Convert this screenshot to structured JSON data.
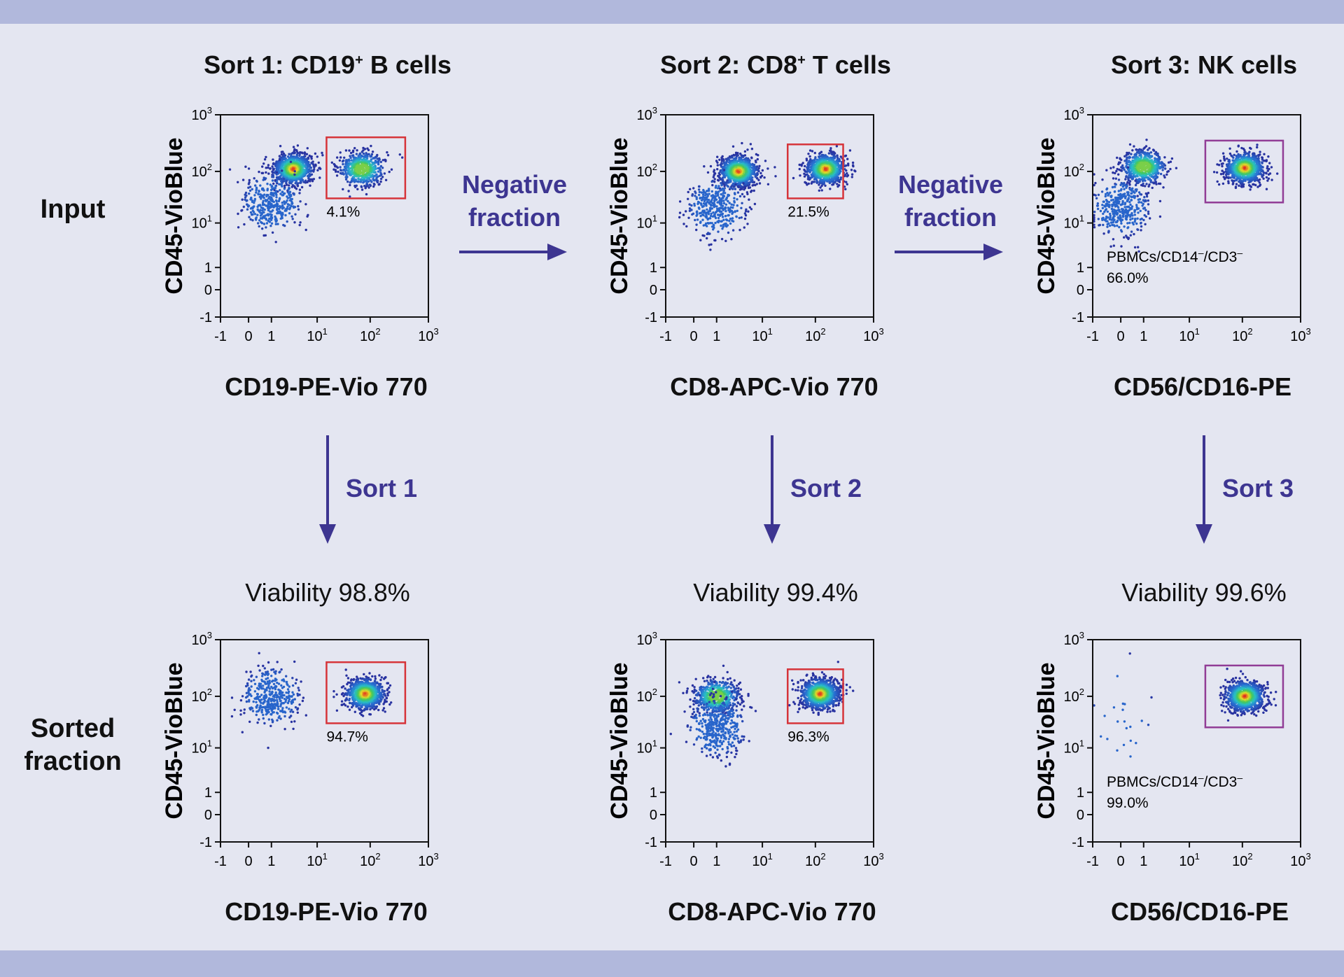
{
  "colors": {
    "band": "#b1b8dc",
    "background": "#e4e6f1",
    "arrow": "#3d3591",
    "gate_red": "#d6343a",
    "gate_purple": "#913d96"
  },
  "row_labels": {
    "input": "Input",
    "sorted_line1": "Sorted",
    "sorted_line2": "fraction"
  },
  "arrows": {
    "negative_line1": "Negative",
    "negative_line2": "fraction",
    "sort1": "Sort 1",
    "sort2": "Sort 2",
    "sort3": "Sort 3"
  },
  "columns": [
    {
      "title_pre": "Sort 1: CD19",
      "title_sup": "+",
      "title_post": " B cells",
      "xlabel": "CD19-PE-Vio 770",
      "viability": "Viability 98.8%"
    },
    {
      "title_pre": "Sort 2: CD8",
      "title_sup": "+",
      "title_post": " T cells",
      "xlabel": "CD8-APC-Vio 770",
      "viability": "Viability 99.4%"
    },
    {
      "title_pre": "Sort 3: NK cells",
      "title_sup": "",
      "title_post": "",
      "xlabel": "CD56/CD16-PE",
      "viability": "Viability 99.6%"
    }
  ],
  "chart_data": [
    {
      "id": "input-sort1",
      "type": "scatter",
      "title": "Sort 1: CD19+ B cells (Input)",
      "xlabel": "CD19-PE-Vio 770",
      "ylabel": "CD45-VioBlue",
      "scale": "biexponential",
      "xlim": [
        -1,
        1000
      ],
      "ylim": [
        -1,
        1000
      ],
      "ticks": [
        "-1",
        "0",
        "1",
        "10",
        "10²",
        "10³"
      ],
      "gate": {
        "x": [
          15,
          400
        ],
        "y": [
          30,
          400
        ],
        "color": "#d6343a"
      },
      "gate_label": "4.1%",
      "clusters": [
        {
          "x": 3,
          "y": 110,
          "density": "high"
        },
        {
          "x": 70,
          "y": 110,
          "density": "medium"
        },
        {
          "x": 1,
          "y": 25,
          "density": "low"
        }
      ]
    },
    {
      "id": "input-sort2",
      "type": "scatter",
      "title": "Sort 2: CD8+ T cells (Input)",
      "xlabel": "CD8-APC-Vio 770",
      "ylabel": "CD45-VioBlue",
      "scale": "biexponential",
      "xlim": [
        -1,
        1000
      ],
      "ylim": [
        -1,
        1000
      ],
      "ticks": [
        "-1",
        "0",
        "1",
        "10",
        "10²",
        "10³"
      ],
      "gate": {
        "x": [
          30,
          300
        ],
        "y": [
          30,
          300
        ],
        "color": "#d6343a"
      },
      "gate_label": "21.5%",
      "clusters": [
        {
          "x": 3,
          "y": 100,
          "density": "high"
        },
        {
          "x": 150,
          "y": 110,
          "density": "high"
        },
        {
          "x": 1,
          "y": 20,
          "density": "low"
        }
      ]
    },
    {
      "id": "input-sort3",
      "type": "scatter",
      "title": "Sort 3: NK cells (Input)",
      "xlabel": "CD56/CD16-PE",
      "ylabel": "CD45-VioBlue",
      "scale": "biexponential",
      "xlim": [
        -1,
        1000
      ],
      "ylim": [
        -1,
        1000
      ],
      "ticks": [
        "-1",
        "0",
        "1",
        "10",
        "10²",
        "10³"
      ],
      "gate": {
        "x": [
          20,
          500
        ],
        "y": [
          25,
          350
        ],
        "color": "#913d96"
      },
      "gate_label_pre": "PBMCs/CD14",
      "gate_label_mid": "/CD3",
      "gate_label_sup": "–",
      "gate_label": "66.0%",
      "clusters": [
        {
          "x": 1,
          "y": 120,
          "density": "medium"
        },
        {
          "x": 110,
          "y": 115,
          "density": "high"
        },
        {
          "x": 0,
          "y": 20,
          "density": "low"
        }
      ]
    },
    {
      "id": "sorted-sort1",
      "type": "scatter",
      "title": "Sort 1: CD19+ B cells (Sorted fraction)",
      "xlabel": "CD19-PE-Vio 770",
      "ylabel": "CD45-VioBlue",
      "scale": "biexponential",
      "xlim": [
        -1,
        1000
      ],
      "ylim": [
        -1,
        1000
      ],
      "ticks": [
        "-1",
        "0",
        "1",
        "10",
        "10²",
        "10³"
      ],
      "gate": {
        "x": [
          15,
          400
        ],
        "y": [
          30,
          400
        ],
        "color": "#d6343a"
      },
      "gate_label": "94.7%",
      "clusters": [
        {
          "x": 80,
          "y": 110,
          "density": "high"
        },
        {
          "x": 1,
          "y": 100,
          "density": "low"
        }
      ]
    },
    {
      "id": "sorted-sort2",
      "type": "scatter",
      "title": "Sort 2: CD8+ T cells (Sorted fraction)",
      "xlabel": "CD8-APC-Vio 770",
      "ylabel": "CD45-VioBlue",
      "scale": "biexponential",
      "xlim": [
        -1,
        1000
      ],
      "ylim": [
        -1,
        1000
      ],
      "ticks": [
        "-1",
        "0",
        "1",
        "10",
        "10²",
        "10³"
      ],
      "gate": {
        "x": [
          30,
          300
        ],
        "y": [
          30,
          300
        ],
        "color": "#d6343a"
      },
      "gate_label": "96.3%",
      "clusters": [
        {
          "x": 120,
          "y": 110,
          "density": "high"
        },
        {
          "x": 1,
          "y": 100,
          "density": "medium"
        },
        {
          "x": 1,
          "y": 25,
          "density": "low"
        }
      ]
    },
    {
      "id": "sorted-sort3",
      "type": "scatter",
      "title": "Sort 3: NK cells (Sorted fraction)",
      "xlabel": "CD56/CD16-PE",
      "ylabel": "CD45-VioBlue",
      "scale": "biexponential",
      "xlim": [
        -1,
        1000
      ],
      "ylim": [
        -1,
        1000
      ],
      "ticks": [
        "-1",
        "0",
        "1",
        "10",
        "10²",
        "10³"
      ],
      "gate": {
        "x": [
          20,
          500
        ],
        "y": [
          25,
          350
        ],
        "color": "#913d96"
      },
      "gate_label_pre": "PBMCs/CD14",
      "gate_label_mid": "/CD3",
      "gate_label_sup": "–",
      "gate_label": "99.0%",
      "clusters": [
        {
          "x": 110,
          "y": 100,
          "density": "high"
        },
        {
          "x": 0,
          "y": 40,
          "density": "sparse"
        }
      ]
    }
  ]
}
